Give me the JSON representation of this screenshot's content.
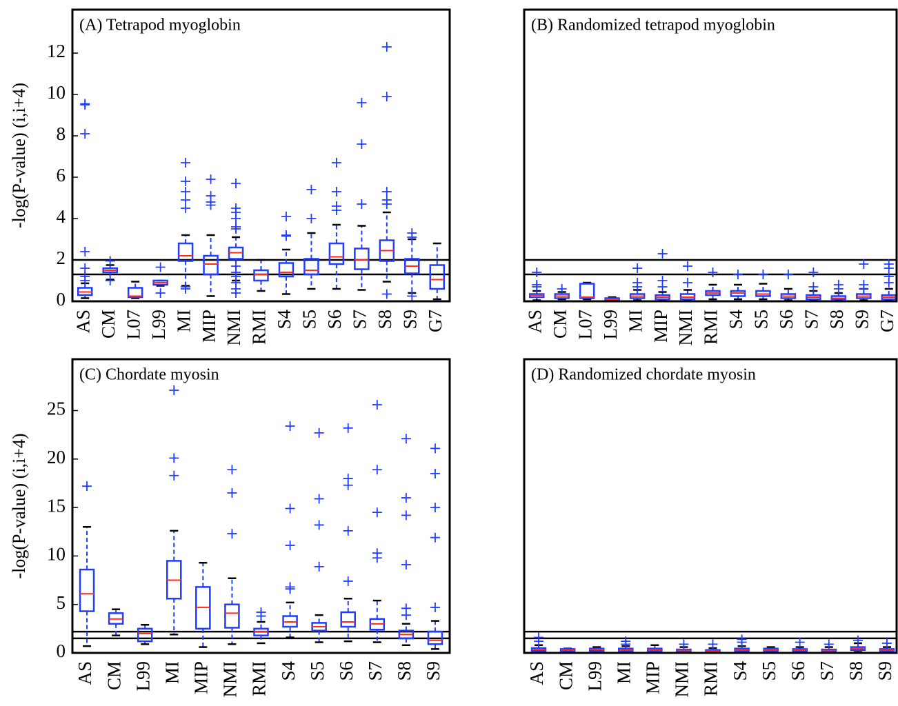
{
  "chart_data": [
    {
      "type": "box",
      "title": "(A) Tetrapod myoglobin",
      "ylabel": "-log(P-value) (i,i+4)",
      "categories": [
        "AS",
        "CM",
        "L07",
        "L99",
        "MI",
        "MIP",
        "NMI",
        "RMI",
        "S4",
        "S5",
        "S6",
        "S7",
        "S8",
        "S9",
        "G7"
      ],
      "ylim": [
        0,
        14.1
      ],
      "yticks": [
        0,
        2,
        4,
        6,
        8,
        10,
        12
      ],
      "hlines": [
        2,
        1.3
      ],
      "box_color": "#1f3cff",
      "median_color": "#ff2a1a",
      "boxes": [
        {
          "low": 0.15,
          "q1": 0.3,
          "median": 0.45,
          "q3": 0.65,
          "high": 0.87,
          "outliers": [
            9.55,
            9.5,
            8.1,
            2.4,
            1.6,
            1.2,
            1.0
          ]
        },
        {
          "low": 1.05,
          "q1": 1.4,
          "median": 1.5,
          "q3": 1.6,
          "high": 1.75,
          "outliers": [
            1.95,
            1.0
          ]
        },
        {
          "low": 0.15,
          "q1": 0.2,
          "median": 0.25,
          "q3": 0.65,
          "high": 0.95,
          "outliers": []
        },
        {
          "low": 0.75,
          "q1": 0.8,
          "median": 0.9,
          "q3": 1.0,
          "high": 1.0,
          "outliers": [
            1.65,
            0.4
          ]
        },
        {
          "low": 0.75,
          "q1": 1.95,
          "median": 2.2,
          "q3": 2.8,
          "high": 3.2,
          "outliers": [
            6.7,
            5.8,
            5.3,
            4.9,
            4.5,
            0.7,
            0.6
          ]
        },
        {
          "low": 0.25,
          "q1": 1.3,
          "median": 1.8,
          "q3": 2.2,
          "high": 3.2,
          "outliers": [
            5.9,
            5.1,
            4.8,
            4.65
          ]
        },
        {
          "low": 1.0,
          "q1": 2.05,
          "median": 2.35,
          "q3": 2.6,
          "high": 3.1,
          "outliers": [
            5.7,
            4.5,
            4.3,
            4.0,
            3.6,
            3.5,
            1.7,
            1.4,
            1.2,
            0.9,
            0.6,
            0.4
          ]
        },
        {
          "low": 0.5,
          "q1": 1.0,
          "median": 1.3,
          "q3": 1.5,
          "high": 2.0,
          "outliers": []
        },
        {
          "low": 0.35,
          "q1": 1.2,
          "median": 1.4,
          "q3": 1.85,
          "high": 2.5,
          "outliers": [
            4.1,
            3.2,
            3.15
          ]
        },
        {
          "low": 0.6,
          "q1": 1.3,
          "median": 1.5,
          "q3": 2.05,
          "high": 3.3,
          "outliers": [
            5.4,
            4.0
          ]
        },
        {
          "low": 0.6,
          "q1": 1.8,
          "median": 2.15,
          "q3": 2.8,
          "high": 3.7,
          "outliers": [
            6.7,
            5.3,
            4.6,
            4.4
          ]
        },
        {
          "low": 0.55,
          "q1": 1.55,
          "median": 2.0,
          "q3": 2.55,
          "high": 3.65,
          "outliers": [
            9.6,
            7.6,
            4.7
          ]
        },
        {
          "low": 0.95,
          "q1": 1.95,
          "median": 2.45,
          "q3": 2.95,
          "high": 4.3,
          "outliers": [
            12.3,
            9.9,
            5.3,
            4.9,
            4.7,
            0.35
          ]
        },
        {
          "low": 0.4,
          "q1": 1.35,
          "median": 1.7,
          "q3": 2.05,
          "high": 3.0,
          "outliers": [
            3.3,
            3.1,
            0.25
          ]
        },
        {
          "low": 0.1,
          "q1": 0.6,
          "median": 1.05,
          "q3": 1.75,
          "high": 2.8,
          "outliers": []
        }
      ]
    },
    {
      "type": "box",
      "title": "(B) Randomized tetrapod myoglobin",
      "categories": [
        "AS",
        "CM",
        "L07",
        "L99",
        "MI",
        "MIP",
        "NMI",
        "RMI",
        "S4",
        "S5",
        "S6",
        "S7",
        "S8",
        "S9",
        "G7"
      ],
      "ylim": [
        0,
        14.1
      ],
      "hlines": [
        2,
        1.3
      ],
      "box_color": "#1f3cff",
      "median_color": "#ff2a1a",
      "boxes": [
        {
          "low": 0.05,
          "q1": 0.2,
          "median": 0.3,
          "q3": 0.35,
          "high": 0.5,
          "outliers": [
            1.4,
            0.8,
            0.7
          ]
        },
        {
          "low": 0.1,
          "q1": 0.15,
          "median": 0.25,
          "q3": 0.35,
          "high": 0.45,
          "outliers": [
            0.6
          ]
        },
        {
          "low": 0.1,
          "q1": 0.15,
          "median": 0.2,
          "q3": 0.85,
          "high": 0.9,
          "outliers": []
        },
        {
          "low": 0.05,
          "q1": 0.08,
          "median": 0.1,
          "q3": 0.15,
          "high": 0.2,
          "outliers": []
        },
        {
          "low": 0.05,
          "q1": 0.15,
          "median": 0.25,
          "q3": 0.35,
          "high": 0.55,
          "outliers": [
            1.6,
            0.9,
            0.7
          ]
        },
        {
          "low": 0.05,
          "q1": 0.1,
          "median": 0.2,
          "q3": 0.3,
          "high": 0.45,
          "outliers": [
            2.3,
            1.0,
            0.7
          ]
        },
        {
          "low": 0.05,
          "q1": 0.1,
          "median": 0.2,
          "q3": 0.35,
          "high": 0.55,
          "outliers": [
            1.7,
            0.9
          ]
        },
        {
          "low": 0.1,
          "q1": 0.3,
          "median": 0.4,
          "q3": 0.5,
          "high": 0.8,
          "outliers": [
            1.4
          ]
        },
        {
          "low": 0.1,
          "q1": 0.25,
          "median": 0.4,
          "q3": 0.5,
          "high": 0.8,
          "outliers": [
            1.3
          ]
        },
        {
          "low": 0.1,
          "q1": 0.25,
          "median": 0.35,
          "q3": 0.5,
          "high": 0.85,
          "outliers": [
            1.3
          ]
        },
        {
          "low": 0.05,
          "q1": 0.15,
          "median": 0.25,
          "q3": 0.35,
          "high": 0.6,
          "outliers": [
            1.3
          ]
        },
        {
          "low": 0.05,
          "q1": 0.1,
          "median": 0.2,
          "q3": 0.3,
          "high": 0.5,
          "outliers": [
            1.4,
            0.7
          ]
        },
        {
          "low": 0.05,
          "q1": 0.1,
          "median": 0.15,
          "q3": 0.25,
          "high": 0.4,
          "outliers": [
            0.8,
            0.6
          ]
        },
        {
          "low": 0.05,
          "q1": 0.15,
          "median": 0.25,
          "q3": 0.35,
          "high": 0.6,
          "outliers": [
            1.8,
            0.8,
            0.6
          ]
        },
        {
          "low": 0.05,
          "q1": 0.1,
          "median": 0.2,
          "q3": 0.3,
          "high": 0.6,
          "outliers": [
            1.8,
            1.6,
            1.2,
            0.9
          ]
        }
      ]
    },
    {
      "type": "box",
      "title": "(C) Chordate myosin",
      "ylabel": "-log(P-value) (i,i+4)",
      "categories": [
        "AS",
        "CM",
        "L99",
        "MI",
        "MIP",
        "NMI",
        "RMI",
        "S4",
        "S5",
        "S6",
        "S7",
        "S8",
        "S9"
      ],
      "ylim": [
        0,
        30.3
      ],
      "yticks": [
        0,
        5,
        10,
        15,
        20,
        25
      ],
      "hlines": [
        2.2,
        1.5
      ],
      "box_color": "#1f3cff",
      "median_color": "#ff2a1a",
      "boxes": [
        {
          "low": 0.7,
          "q1": 4.3,
          "median": 6.1,
          "q3": 8.6,
          "high": 13.0,
          "outliers": [
            17.2
          ]
        },
        {
          "low": 1.8,
          "q1": 3.0,
          "median": 3.5,
          "q3": 4.1,
          "high": 4.5,
          "outliers": []
        },
        {
          "low": 0.9,
          "q1": 1.2,
          "median": 2.0,
          "q3": 2.5,
          "high": 2.9,
          "outliers": []
        },
        {
          "low": 1.9,
          "q1": 5.6,
          "median": 7.5,
          "q3": 9.5,
          "high": 12.6,
          "outliers": [
            27.1,
            20.1,
            18.3
          ]
        },
        {
          "low": 0.6,
          "q1": 2.5,
          "median": 4.7,
          "q3": 6.8,
          "high": 9.3,
          "outliers": []
        },
        {
          "low": 0.9,
          "q1": 2.6,
          "median": 4.1,
          "q3": 5.0,
          "high": 7.7,
          "outliers": [
            18.9,
            16.5,
            12.3
          ]
        },
        {
          "low": 1.0,
          "q1": 1.8,
          "median": 2.2,
          "q3": 2.5,
          "high": 3.2,
          "outliers": [
            4.2,
            3.8
          ]
        },
        {
          "low": 1.6,
          "q1": 2.7,
          "median": 3.2,
          "q3": 3.8,
          "high": 5.2,
          "outliers": [
            23.4,
            14.9,
            11.1,
            6.8,
            6.6
          ]
        },
        {
          "low": 1.1,
          "q1": 2.3,
          "median": 2.7,
          "q3": 3.1,
          "high": 3.9,
          "outliers": [
            22.7,
            15.9,
            13.2,
            8.9
          ]
        },
        {
          "low": 1.2,
          "q1": 2.7,
          "median": 3.2,
          "q3": 4.2,
          "high": 5.6,
          "outliers": [
            23.2,
            18.0,
            17.3,
            12.6,
            7.4
          ]
        },
        {
          "low": 1.1,
          "q1": 2.4,
          "median": 3.0,
          "q3": 3.5,
          "high": 5.4,
          "outliers": [
            25.6,
            18.9,
            14.5,
            10.3,
            9.8
          ]
        },
        {
          "low": 0.8,
          "q1": 1.5,
          "median": 1.9,
          "q3": 2.3,
          "high": 3.0,
          "outliers": [
            22.1,
            16.0,
            14.2,
            9.1,
            4.6,
            3.9
          ]
        },
        {
          "low": 0.4,
          "q1": 0.9,
          "median": 1.3,
          "q3": 2.2,
          "high": 3.3,
          "outliers": [
            21.1,
            18.5,
            15.0,
            11.9,
            4.7
          ]
        }
      ]
    },
    {
      "type": "box",
      "title": "(D) Randomized chordate myosin",
      "categories": [
        "AS",
        "CM",
        "L99",
        "MI",
        "MIP",
        "NMI",
        "RMI",
        "S4",
        "S5",
        "S6",
        "S7",
        "S8",
        "S9"
      ],
      "ylim": [
        0,
        30.3
      ],
      "hlines": [
        2.2,
        1.5
      ],
      "box_color": "#1f3cff",
      "median_color": "#ff2a1a",
      "boxes": [
        {
          "low": 0.05,
          "q1": 0.2,
          "median": 0.35,
          "q3": 0.5,
          "high": 0.8,
          "outliers": [
            1.6,
            1.2
          ]
        },
        {
          "low": 0.1,
          "q1": 0.2,
          "median": 0.3,
          "q3": 0.4,
          "high": 0.45,
          "outliers": []
        },
        {
          "low": 0.1,
          "q1": 0.2,
          "median": 0.35,
          "q3": 0.45,
          "high": 0.6,
          "outliers": []
        },
        {
          "low": 0.1,
          "q1": 0.2,
          "median": 0.3,
          "q3": 0.45,
          "high": 0.7,
          "outliers": [
            1.2,
            0.9
          ]
        },
        {
          "low": 0.05,
          "q1": 0.2,
          "median": 0.3,
          "q3": 0.45,
          "high": 0.8,
          "outliers": []
        },
        {
          "low": 0.05,
          "q1": 0.15,
          "median": 0.25,
          "q3": 0.35,
          "high": 0.6,
          "outliers": [
            0.9
          ]
        },
        {
          "low": 0.05,
          "q1": 0.1,
          "median": 0.2,
          "q3": 0.3,
          "high": 0.5,
          "outliers": [
            0.9
          ]
        },
        {
          "low": 0.1,
          "q1": 0.2,
          "median": 0.3,
          "q3": 0.45,
          "high": 0.7,
          "outliers": [
            1.4,
            1.1
          ]
        },
        {
          "low": 0.1,
          "q1": 0.2,
          "median": 0.3,
          "q3": 0.45,
          "high": 0.6,
          "outliers": []
        },
        {
          "low": 0.1,
          "q1": 0.2,
          "median": 0.3,
          "q3": 0.4,
          "high": 0.6,
          "outliers": [
            1.1
          ]
        },
        {
          "low": 0.1,
          "q1": 0.15,
          "median": 0.25,
          "q3": 0.35,
          "high": 0.6,
          "outliers": [
            0.9
          ]
        },
        {
          "low": 0.1,
          "q1": 0.3,
          "median": 0.45,
          "q3": 0.6,
          "high": 1.0,
          "outliers": [
            1.3
          ]
        },
        {
          "low": 0.05,
          "q1": 0.2,
          "median": 0.3,
          "q3": 0.4,
          "high": 0.6,
          "outliers": [
            1.0
          ]
        }
      ]
    }
  ]
}
